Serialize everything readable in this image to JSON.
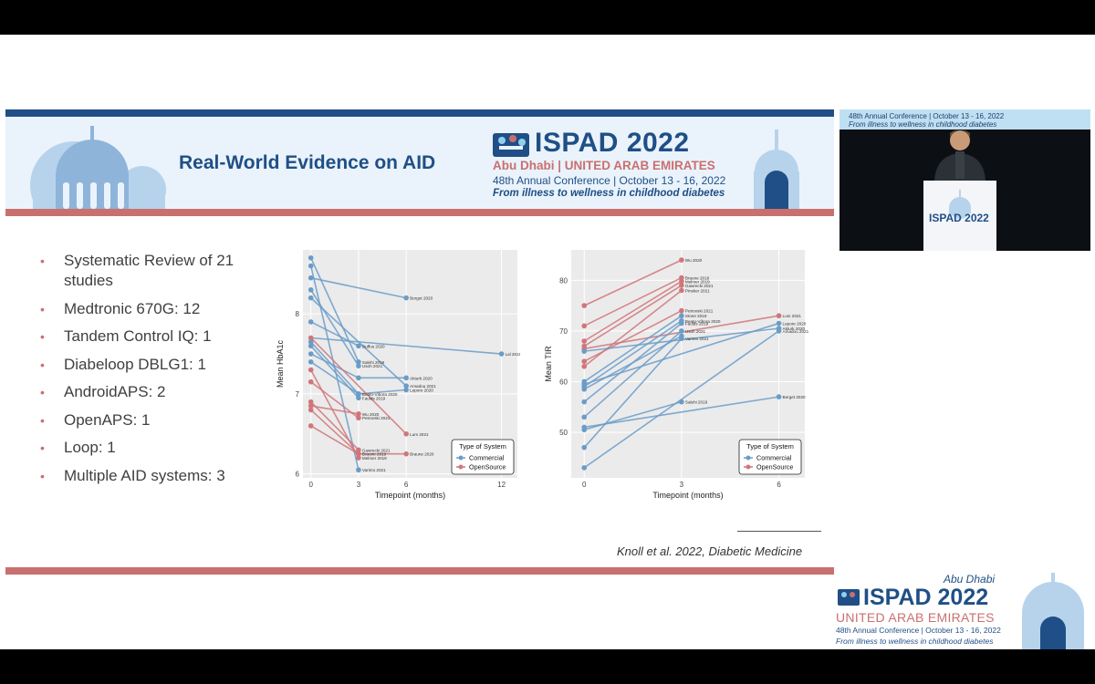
{
  "colors": {
    "brand_blue": "#1f4f86",
    "accent_red": "#c9706f",
    "commercial": "#6a9cc9",
    "opensource": "#d0767a",
    "bullet_text": "#404040"
  },
  "header": {
    "title": "Real-World Evidence on AID",
    "logo": {
      "main_ispad": "ISPAD",
      "main_year": "2022",
      "location_city": "Abu Dhabi",
      "location_country": "UNITED ARAB EMIRATES",
      "conference": "48th Annual Conference | October 13 - 16, 2022",
      "tagline": "From illness to wellness in childhood diabetes"
    }
  },
  "bullets": [
    "Systematic Review of 21 studies",
    "Medtronic 670G: 12",
    "Tandem Control IQ: 1",
    "Diabeloop DBLG1: 1",
    "AndroidAPS: 2",
    "OpenAPS: 1",
    "Loop: 1",
    "Multiple AID systems: 3"
  ],
  "citation": "Knoll et al. 2022, Diabetic Medicine",
  "video": {
    "banner_text": "48th Annual Conference | October 13 - 16, 2022",
    "banner_tagline": "From illness to wellness in childhood diabetes",
    "podium_ispad": "ISPAD",
    "podium_year": "2022"
  },
  "footer_logo": {
    "city": "Abu Dhabi",
    "main_ispad": "ISPAD",
    "main_year": "2022",
    "country": "UNITED ARAB EMIRATES",
    "conference": "48th Annual Conference | October 13 - 16, 2022",
    "tagline": "From illness to wellness in childhood diabetes"
  },
  "chart_data": [
    {
      "type": "line",
      "xlabel": "Timepoint (months)",
      "ylabel": "Mean HbA1c",
      "xticks": [
        0,
        3,
        6,
        12
      ],
      "yticks": [
        6,
        7,
        8
      ],
      "xlim": [
        -0.5,
        13
      ],
      "ylim": [
        5.95,
        8.8
      ],
      "grid": true,
      "legend": {
        "title": "Type of System",
        "position": "bottom-right",
        "entries": [
          "Commercial",
          "OpenSource"
        ]
      },
      "series": [
        {
          "type": "Commercial",
          "points": [
            [
              0,
              8.45
            ],
            [
              6,
              8.2
            ]
          ],
          "label": "Berget 2020"
        },
        {
          "type": "Commercial",
          "points": [
            [
              0,
              7.9
            ],
            [
              3,
              7.6
            ]
          ],
          "label": "Duffus 2020"
        },
        {
          "type": "Commercial",
          "points": [
            [
              0,
              7.7
            ],
            [
              12,
              7.5
            ]
          ],
          "label": "Lal 2019"
        },
        {
          "type": "Commercial",
          "points": [
            [
              0,
              8.7
            ],
            [
              3,
              7.4
            ]
          ],
          "label": "Salehi 2019"
        },
        {
          "type": "Commercial",
          "points": [
            [
              0,
              8.3
            ],
            [
              3,
              7.35
            ]
          ],
          "label": "Usoh 2021"
        },
        {
          "type": "Commercial",
          "points": [
            [
              0,
              7.5
            ],
            [
              3,
              7.2
            ],
            [
              6,
              7.2
            ]
          ],
          "label": "Akturk 2020"
        },
        {
          "type": "Commercial",
          "points": [
            [
              0,
              8.2
            ],
            [
              6,
              7.1
            ]
          ],
          "label": "Amadou 2021"
        },
        {
          "type": "Commercial",
          "points": [
            [
              0,
              7.4
            ],
            [
              3,
              7.0
            ],
            [
              6,
              7.05
            ]
          ],
          "label": "Lepore 2020"
        },
        {
          "type": "Commercial",
          "points": [
            [
              0,
              7.65
            ],
            [
              3,
              7.0
            ]
          ],
          "label": "Beato-Víbora 2020"
        },
        {
          "type": "Commercial",
          "points": [
            [
              0,
              7.6
            ],
            [
              3,
              6.95
            ]
          ],
          "label": "Faulds 2019"
        },
        {
          "type": "Commercial",
          "points": [
            [
              0,
              8.6
            ],
            [
              3,
              6.05
            ]
          ],
          "label": "Varimo 2021"
        },
        {
          "type": "OpenSource",
          "points": [
            [
              0,
              6.85
            ],
            [
              3,
              6.75
            ]
          ],
          "label": "Wu 2020"
        },
        {
          "type": "OpenSource",
          "points": [
            [
              0,
              7.15
            ],
            [
              3,
              6.7
            ]
          ],
          "label": "Petrovski 2021"
        },
        {
          "type": "OpenSource",
          "points": [
            [
              0,
              7.7
            ],
            [
              6,
              6.5
            ]
          ],
          "label": "Lum 2021"
        },
        {
          "type": "OpenSource",
          "points": [
            [
              0,
              6.9
            ],
            [
              3,
              6.3
            ]
          ],
          "label": "Gawrecki 2021"
        },
        {
          "type": "OpenSource",
          "points": [
            [
              0,
              6.6
            ],
            [
              3,
              6.25
            ],
            [
              6,
              6.25
            ]
          ],
          "label": "Braune 2020"
        },
        {
          "type": "OpenSource",
          "points": [
            [
              0,
              6.8
            ],
            [
              3,
              6.25
            ]
          ],
          "label": "Braune 2019"
        },
        {
          "type": "OpenSource",
          "points": [
            [
              0,
              7.3
            ],
            [
              3,
              6.2
            ]
          ],
          "label": "Melmer 2019"
        }
      ]
    },
    {
      "type": "line",
      "xlabel": "Timepoint (months)",
      "ylabel": "Mean TIR",
      "xticks": [
        0,
        3,
        6
      ],
      "yticks": [
        50,
        60,
        70,
        80
      ],
      "xlim": [
        -0.4,
        6.8
      ],
      "ylim": [
        41,
        86
      ],
      "grid": true,
      "legend": {
        "title": "Type of System",
        "position": "bottom-right",
        "entries": [
          "Commercial",
          "OpenSource"
        ]
      },
      "series": [
        {
          "type": "OpenSource",
          "points": [
            [
              0,
              75
            ],
            [
              3,
              84
            ]
          ],
          "label": "Wu 2020"
        },
        {
          "type": "OpenSource",
          "points": [
            [
              0,
              71
            ],
            [
              3,
              80.5
            ]
          ],
          "label": "Braune 2019"
        },
        {
          "type": "OpenSource",
          "points": [
            [
              0,
              68
            ],
            [
              3,
              79.8
            ]
          ],
          "label": "Melmer 2019"
        },
        {
          "type": "OpenSource",
          "points": [
            [
              0,
              67
            ],
            [
              3,
              79
            ]
          ],
          "label": "Gawrecki 2021"
        },
        {
          "type": "OpenSource",
          "points": [
            [
              0,
              63
            ],
            [
              3,
              78
            ]
          ],
          "label": "Pinsker 2021"
        },
        {
          "type": "OpenSource",
          "points": [
            [
              0,
              64
            ],
            [
              3,
              74
            ]
          ],
          "label": "Petrovski 2021"
        },
        {
          "type": "OpenSource",
          "points": [
            [
              0,
              66.5
            ],
            [
              6,
              73
            ]
          ],
          "label": "Lum 2021"
        },
        {
          "type": "Commercial",
          "points": [
            [
              0,
              60
            ],
            [
              3,
              73
            ]
          ],
          "label": "Stone 2018"
        },
        {
          "type": "Commercial",
          "points": [
            [
              0,
              59
            ],
            [
              3,
              72
            ]
          ],
          "label": "Beato-Víbora 2020"
        },
        {
          "type": "Commercial",
          "points": [
            [
              0,
              56
            ],
            [
              3,
              71.5
            ]
          ],
          "label": "Faulds 2019"
        },
        {
          "type": "Commercial",
          "points": [
            [
              0,
              53
            ],
            [
              3,
              70
            ]
          ],
          "label": "Usoh 2021"
        },
        {
          "type": "Commercial",
          "points": [
            [
              0,
              47
            ],
            [
              3,
              68.5
            ]
          ],
          "label": "Varimo 2021"
        },
        {
          "type": "Commercial",
          "points": [
            [
              0,
              59.5
            ],
            [
              6,
              71.5
            ]
          ],
          "label": "Lepore 2020"
        },
        {
          "type": "Commercial",
          "points": [
            [
              0,
              66
            ],
            [
              6,
              70.5
            ]
          ],
          "label": "Akturk 2020"
        },
        {
          "type": "Commercial",
          "points": [
            [
              0,
              43
            ],
            [
              6,
              70
            ]
          ],
          "label": "Amadou 2021"
        },
        {
          "type": "Commercial",
          "points": [
            [
              0,
              58.5
            ],
            [
              3,
              69
            ]
          ],
          "label": ""
        },
        {
          "type": "Commercial",
          "points": [
            [
              0,
              50.5
            ],
            [
              3,
              56
            ]
          ],
          "label": "Salehi 2019"
        },
        {
          "type": "Commercial",
          "points": [
            [
              0,
              51
            ],
            [
              6,
              57
            ]
          ],
          "label": "Berget 2020"
        }
      ]
    }
  ]
}
